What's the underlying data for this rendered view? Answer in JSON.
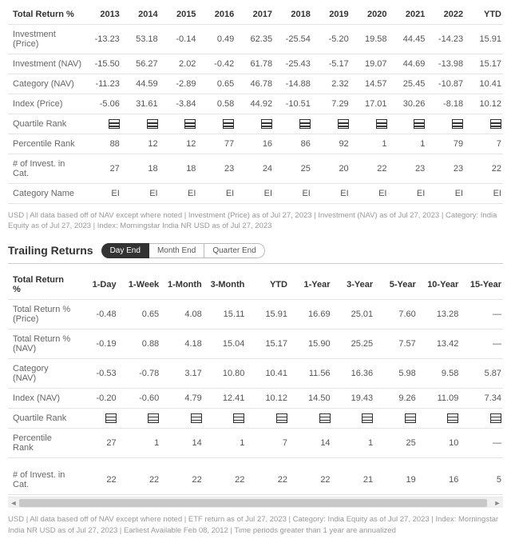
{
  "table1": {
    "header_label": "Total Return %",
    "years": [
      "2013",
      "2014",
      "2015",
      "2016",
      "2017",
      "2018",
      "2019",
      "2020",
      "2021",
      "2022",
      "YTD"
    ],
    "rows": [
      {
        "label": "Investment (Price)",
        "cells": [
          "-13.23",
          "53.18",
          "-0.14",
          "0.49",
          "62.35",
          "-25.54",
          "-5.20",
          "19.58",
          "44.45",
          "-14.23",
          "15.91"
        ]
      },
      {
        "label": "Investment (NAV)",
        "cells": [
          "-15.50",
          "56.27",
          "2.02",
          "-0.42",
          "61.78",
          "-25.43",
          "-5.17",
          "19.07",
          "44.69",
          "-13.98",
          "15.17"
        ]
      },
      {
        "label": "Category (NAV)",
        "cells": [
          "-11.23",
          "44.59",
          "-2.89",
          "0.65",
          "46.78",
          "-14.88",
          "2.32",
          "14.57",
          "25.45",
          "-10.87",
          "10.41"
        ]
      },
      {
        "label": "Index (Price)",
        "cells": [
          "-5.06",
          "31.61",
          "-3.84",
          "0.58",
          "44.92",
          "-10.51",
          "7.29",
          "17.01",
          "30.26",
          "-8.18",
          "10.12"
        ]
      },
      {
        "label": "Quartile Rank",
        "icon": true
      },
      {
        "label": "Percentile Rank",
        "cells": [
          "88",
          "12",
          "12",
          "77",
          "16",
          "86",
          "92",
          "1",
          "1",
          "79",
          "7"
        ]
      },
      {
        "label": "# of Invest. in Cat.",
        "cells": [
          "27",
          "18",
          "18",
          "23",
          "24",
          "25",
          "20",
          "22",
          "23",
          "23",
          "22"
        ]
      },
      {
        "label": "Category Name",
        "cells": [
          "EI",
          "EI",
          "EI",
          "EI",
          "EI",
          "EI",
          "EI",
          "EI",
          "EI",
          "EI",
          "EI"
        ]
      }
    ],
    "footnote": "USD | All data based off of NAV except where noted | Investment (Price) as of Jul 27, 2023 | Investment (NAV) as of Jul 27, 2023 | Category: India Equity as of Jul 27, 2023 | Index: Morningstar India NR USD as of Jul 27, 2023"
  },
  "trailing": {
    "title": "Trailing Returns",
    "tabs": [
      "Day End",
      "Month End",
      "Quarter End"
    ],
    "active_tab": 0,
    "header_label": "Total Return %",
    "periods": [
      "1-Day",
      "1-Week",
      "1-Month",
      "3-Month",
      "YTD",
      "1-Year",
      "3-Year",
      "5-Year",
      "10-Year",
      "15-Year"
    ],
    "rows": [
      {
        "label": "Total Return % (Price)",
        "cells": [
          "-0.48",
          "0.65",
          "4.08",
          "15.11",
          "15.91",
          "16.69",
          "25.01",
          "7.60",
          "13.28",
          "—"
        ]
      },
      {
        "label": "Total Return % (NAV)",
        "cells": [
          "-0.19",
          "0.88",
          "4.18",
          "15.04",
          "15.17",
          "15.90",
          "25.25",
          "7.57",
          "13.42",
          "—"
        ]
      },
      {
        "label": "Category (NAV)",
        "cells": [
          "-0.53",
          "-0.78",
          "3.17",
          "10.80",
          "10.41",
          "11.56",
          "16.36",
          "5.98",
          "9.58",
          "5.87"
        ]
      },
      {
        "label": "Index (NAV)",
        "cells": [
          "-0.20",
          "-0.60",
          "4.79",
          "12.41",
          "10.12",
          "14.50",
          "19.43",
          "9.26",
          "11.09",
          "7.34"
        ]
      },
      {
        "label": "Quartile Rank",
        "icon": true
      },
      {
        "label": "Percentile Rank",
        "cells": [
          "27",
          "1",
          "14",
          "1",
          "7",
          "14",
          "1",
          "25",
          "10",
          "—"
        ]
      },
      {
        "label": "# of Invest. in Cat.",
        "cells": [
          "22",
          "22",
          "22",
          "22",
          "22",
          "22",
          "21",
          "19",
          "16",
          "5"
        ],
        "gap_before": true
      }
    ],
    "footnote": "USD | All data based off of NAV except where noted | ETF return as of Jul 27, 2023 | Category: India Equity as of Jul 27, 2023 | Index: Morningstar India NR USD as of Jul 27, 2023 | Earliest Available Feb 08, 2012 | Time periods greater than 1 year are annualized"
  }
}
